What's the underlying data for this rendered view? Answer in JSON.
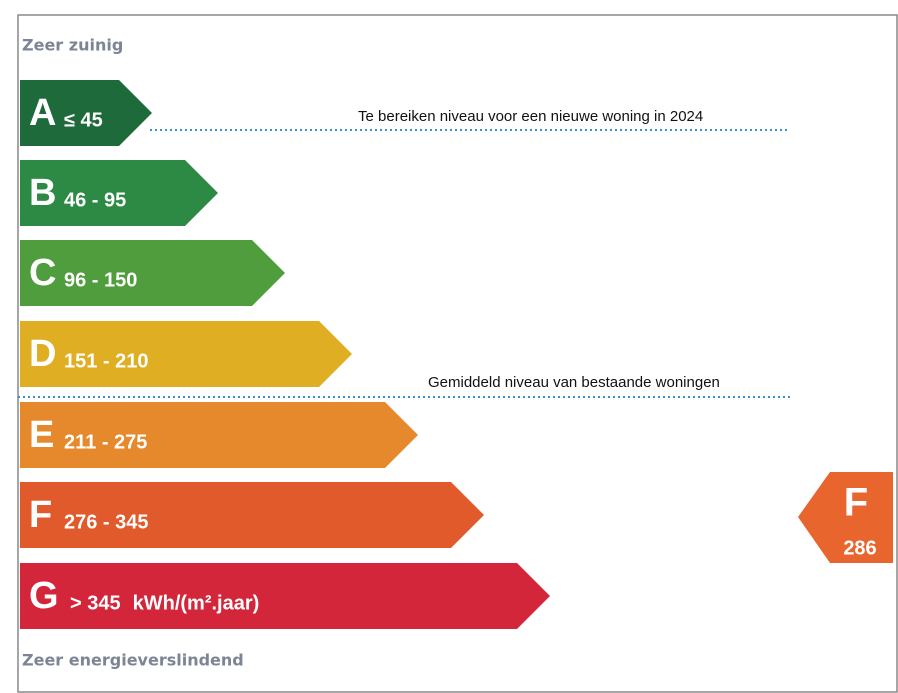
{
  "header": {
    "top_label": "Zeer zuinig",
    "bottom_label": "Zeer energieverslindend"
  },
  "classes": [
    {
      "letter": "A",
      "range": "≤ 45"
    },
    {
      "letter": "B",
      "range": "46 - 95"
    },
    {
      "letter": "C",
      "range": "96 - 150"
    },
    {
      "letter": "D",
      "range": "151 - 210"
    },
    {
      "letter": "E",
      "range": "211 - 275"
    },
    {
      "letter": "F",
      "range": "276 - 345"
    },
    {
      "letter": "G",
      "range": "> 345",
      "unit": "kWh/(m².jaar)"
    }
  ],
  "annotations": [
    "Te bereiken niveau voor een nieuwe woning in 2024",
    "Gemiddeld niveau van bestaande woningen"
  ],
  "indicator": {
    "letter": "F",
    "value": "286"
  }
}
